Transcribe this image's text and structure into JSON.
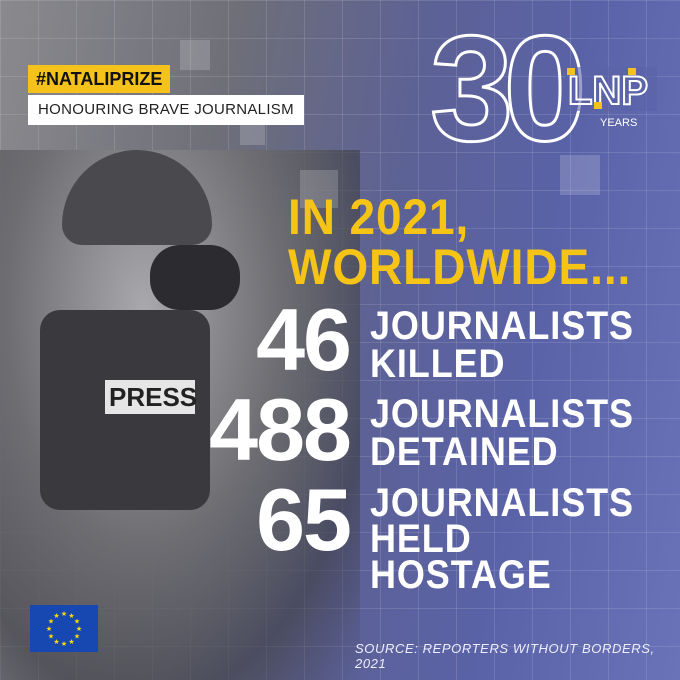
{
  "hashtag": "#NATALIPRIZE",
  "tagline": "HONOURING BRAVE JOURNALISM",
  "logo": {
    "number": "30",
    "brand": "LNP",
    "years": "YEARS",
    "accent": "#f4c21a"
  },
  "headline": {
    "line1": "IN 2021,",
    "line2": "WORLDWIDE..."
  },
  "stats": [
    {
      "value": "46",
      "line1": "JOURNALISTS",
      "line2": "KILLED"
    },
    {
      "value": "488",
      "line1": "JOURNALISTS",
      "line2": "DETAINED"
    },
    {
      "value": "65",
      "line1": "JOURNALISTS",
      "line2": "HELD",
      "line3": "HOSTAGE"
    }
  ],
  "photo_text": "PRESS",
  "source": "SOURCE: REPORTERS WITHOUT BORDERS, 2021",
  "colors": {
    "yellow": "#f6c416",
    "blue": "#5a62a8",
    "eu_blue": "#1747b0"
  }
}
